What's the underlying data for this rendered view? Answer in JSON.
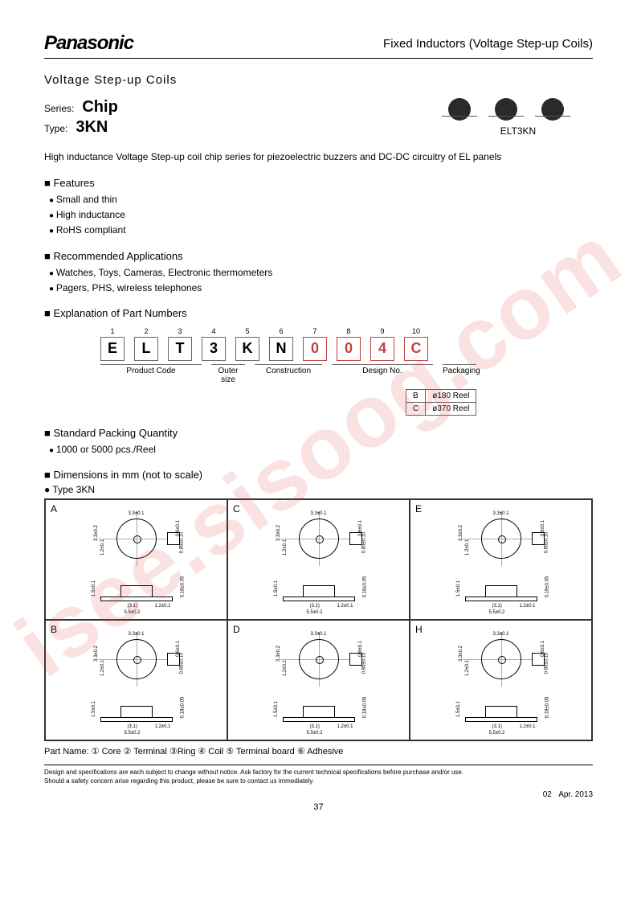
{
  "header": {
    "logo": "Panasonic",
    "title": "Fixed Inductors (Voltage Step-up Coils)"
  },
  "subtitle": "Voltage Step-up Coils",
  "series": {
    "label": "Series:",
    "value": "Chip"
  },
  "type": {
    "label": "Type:",
    "value": "3KN"
  },
  "chip_label": "ELT3KN",
  "description": "High inductance Voltage Step-up coil chip series for piezoelectric buzzers and DC-DC circuitry of EL panels",
  "features_title": "Features",
  "features": [
    "Small and thin",
    "High inductance",
    "RoHS compliant"
  ],
  "apps_title": "Recommended Applications",
  "apps": [
    "Watches, Toys, Cameras, Electronic thermometers",
    "Pagers, PHS, wireless telephones"
  ],
  "partnum_title": "Explanation of Part Numbers",
  "partnum": {
    "nums": [
      "1",
      "2",
      "3",
      "4",
      "5",
      "6",
      "7",
      "8",
      "9",
      "10"
    ],
    "chars": [
      "E",
      "L",
      "T",
      "3",
      "K",
      "N",
      "0",
      "0",
      "4",
      "C"
    ],
    "red_from": 6,
    "labels": {
      "product_code": "Product Code",
      "outer_size": "Outer size",
      "construction": "Construction",
      "design_no": "Design No.",
      "packaging": "Packaging"
    }
  },
  "pack_table": [
    [
      "B",
      "ø180 Reel"
    ],
    [
      "C",
      "ø370 Reel"
    ]
  ],
  "packing_title": "Standard Packing Quantity",
  "packing_items": [
    "1000 or 5000 pcs./Reel"
  ],
  "dim_title": "Dimensions in mm (not to scale)",
  "dim_sub": "Type 3KN",
  "dim_cells": [
    "A",
    "C",
    "E",
    "B",
    "D",
    "H"
  ],
  "dim_common": {
    "w1": "3.3±0.1",
    "w2": "5.5±0.2",
    "h1": "3.3±0.2",
    "h2": "1.2±0.1",
    "t1": "0.6±0.1",
    "t2": "0.85±0.10",
    "base": "(3.1)",
    "th": "1.5±0.1",
    "lead": "1.2±0.1",
    "cap": "0.18±0.05"
  },
  "part_name_row": "Part Name: ① Core ② Terminal ③Ring ④ Coil ⑤ Terminal board ⑥ Adhesive",
  "footer": {
    "line1": "Design and specifications are each subject to change without notice.  Ask factory for the current technical specifications before purchase and/or use.",
    "line2": "Should a safety concern arise regarding this product, please be sure to contact us immediately.",
    "rev": "02",
    "date": "Apr. 2013"
  },
  "page": "37",
  "colors": {
    "red": "#c04040",
    "black": "#000000"
  }
}
